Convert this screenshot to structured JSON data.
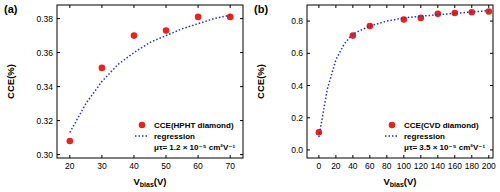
{
  "chart_data": [
    {
      "type": "scatter",
      "title": "(a)",
      "x_label": "Vbias(V)",
      "y_label": "CCE(%)",
      "xlim": [
        16,
        74
      ],
      "ylim": [
        0.298,
        0.388
      ],
      "xticks": [
        20,
        30,
        40,
        50,
        60,
        70
      ],
      "yticks": [
        {
          "value": 0.3,
          "label": "0.30"
        },
        {
          "value": 0.32,
          "label": "0.32"
        },
        {
          "value": 0.34,
          "label": "0.34"
        },
        {
          "value": 0.36,
          "label": "0.36"
        },
        {
          "value": 0.38,
          "label": "0.38"
        }
      ],
      "legend": "lower right",
      "annotations": [
        "μτ= 1.2 × 10⁻⁵ cm²V⁻¹"
      ],
      "series": [
        {
          "name": "CCE(HPHT diamond)",
          "type": "scatter",
          "marker": "circle",
          "color": "#e8221c",
          "x": [
            20,
            30,
            40,
            50,
            60,
            70
          ],
          "values": [
            0.308,
            0.351,
            0.37,
            0.373,
            0.381,
            0.381
          ]
        },
        {
          "name": "regression",
          "type": "line",
          "line_style": "dotted",
          "color": "#2136c9",
          "x": [
            20,
            25,
            30,
            35,
            40,
            45,
            50,
            55,
            60,
            65,
            70
          ],
          "values": [
            0.313,
            0.33,
            0.343,
            0.353,
            0.36,
            0.366,
            0.37,
            0.374,
            0.377,
            0.38,
            0.382
          ]
        }
      ]
    },
    {
      "type": "scatter",
      "title": "(b)",
      "x_label": "Vbias(V)",
      "y_label": "CCE(%)",
      "xlim": [
        -14,
        205
      ],
      "ylim": [
        -0.05,
        0.9
      ],
      "xticks": [
        0,
        20,
        40,
        60,
        80,
        100,
        120,
        140,
        160,
        180,
        200
      ],
      "yticks": [
        {
          "value": 0,
          "label": "0.0"
        },
        {
          "value": 0.2,
          "label": "0.2"
        },
        {
          "value": 0.4,
          "label": "0.4"
        },
        {
          "value": 0.6,
          "label": "0.6"
        },
        {
          "value": 0.8,
          "label": "0.8"
        }
      ],
      "legend": "lower right",
      "annotations": [
        "μτ= 3.5 × 10⁻⁵ cm²V⁻¹"
      ],
      "series": [
        {
          "name": "CCE(CVD diamond)",
          "type": "scatter",
          "marker": "circle",
          "color": "#e8221c",
          "x": [
            0,
            40,
            60,
            100,
            120,
            140,
            160,
            180,
            200
          ],
          "values": [
            0.11,
            0.71,
            0.77,
            0.81,
            0.82,
            0.845,
            0.85,
            0.855,
            0.86
          ]
        },
        {
          "name": "regression",
          "type": "line",
          "line_style": "dotted",
          "color": "#2136c9",
          "x": [
            0,
            10,
            20,
            30,
            40,
            60,
            80,
            100,
            140,
            200
          ],
          "values": [
            0.08,
            0.38,
            0.56,
            0.66,
            0.72,
            0.77,
            0.8,
            0.82,
            0.84,
            0.865
          ]
        }
      ]
    }
  ]
}
